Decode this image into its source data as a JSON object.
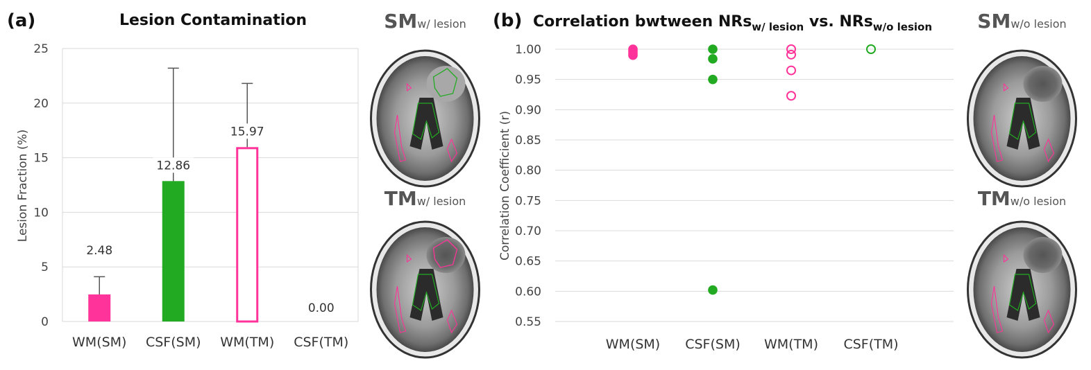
{
  "panel_a_label": "(a)",
  "panel_b_label": "(b)",
  "chart_data": [
    {
      "type": "bar",
      "title": "Lesion Contamination",
      "xlabel": "",
      "ylabel": "Lesion Fraction (%)",
      "ylim": [
        0,
        25
      ],
      "yticks": [
        0,
        5,
        10,
        15,
        20,
        25
      ],
      "grid": true,
      "categories": [
        "WM(SM)",
        "CSF(SM)",
        "WM(TM)",
        "CSF(TM)"
      ],
      "values": [
        2.48,
        12.86,
        15.97,
        0.0
      ],
      "value_labels": [
        "2.48",
        "12.86",
        "15.97",
        "0.00"
      ],
      "error_upper": [
        4.1,
        23.2,
        21.8,
        0.0
      ],
      "styles": [
        "filled",
        "filled",
        "hollow",
        "filled"
      ],
      "colors": [
        "#ff3399",
        "#22aa22",
        "#ff3399",
        "#22aa22"
      ]
    },
    {
      "type": "scatter",
      "title_parts": [
        "Correlation bwtween NRs",
        "w/ lesion",
        " vs. NRs",
        "w/o lesion"
      ],
      "xlabel": "",
      "ylabel": "Correlation Coefficient (r)",
      "ylim": [
        0.55,
        1.0
      ],
      "yticks": [
        0.55,
        0.6,
        0.65,
        0.7,
        0.75,
        0.8,
        0.85,
        0.9,
        0.95,
        1.0
      ],
      "ytick_labels": [
        "0.55",
        "0.60",
        "0.65",
        "0.70",
        "0.75",
        "0.80",
        "0.85",
        "0.90",
        "0.95",
        "1.00"
      ],
      "grid": true,
      "categories": [
        "WM(SM)",
        "CSF(SM)",
        "WM(TM)",
        "CSF(TM)"
      ],
      "series": [
        {
          "name": "WM(SM)",
          "category": 0,
          "values": [
            1.0,
            0.997,
            0.993,
            0.99
          ],
          "style": "filled",
          "color": "#ff3399"
        },
        {
          "name": "CSF(SM)",
          "category": 1,
          "values": [
            1.0,
            0.984,
            0.95,
            0.602
          ],
          "style": "filled",
          "color": "#22aa22"
        },
        {
          "name": "WM(TM)",
          "category": 2,
          "values": [
            1.0,
            0.991,
            0.965,
            0.923
          ],
          "style": "hollow",
          "color": "#ff3399"
        },
        {
          "name": "CSF(TM)",
          "category": 3,
          "values": [
            1.0
          ],
          "style": "hollow",
          "color": "#22aa22"
        }
      ]
    }
  ],
  "brain_images": [
    {
      "main": "SM",
      "sub": "w/ lesion"
    },
    {
      "main": "TM",
      "sub": "w/ lesion"
    },
    {
      "main": "SM",
      "sub": "w/o lesion"
    },
    {
      "main": "TM",
      "sub": "w/o lesion"
    }
  ],
  "colors": {
    "pink": "#ff3399",
    "green": "#22aa22",
    "grid": "#d9d9d9"
  }
}
